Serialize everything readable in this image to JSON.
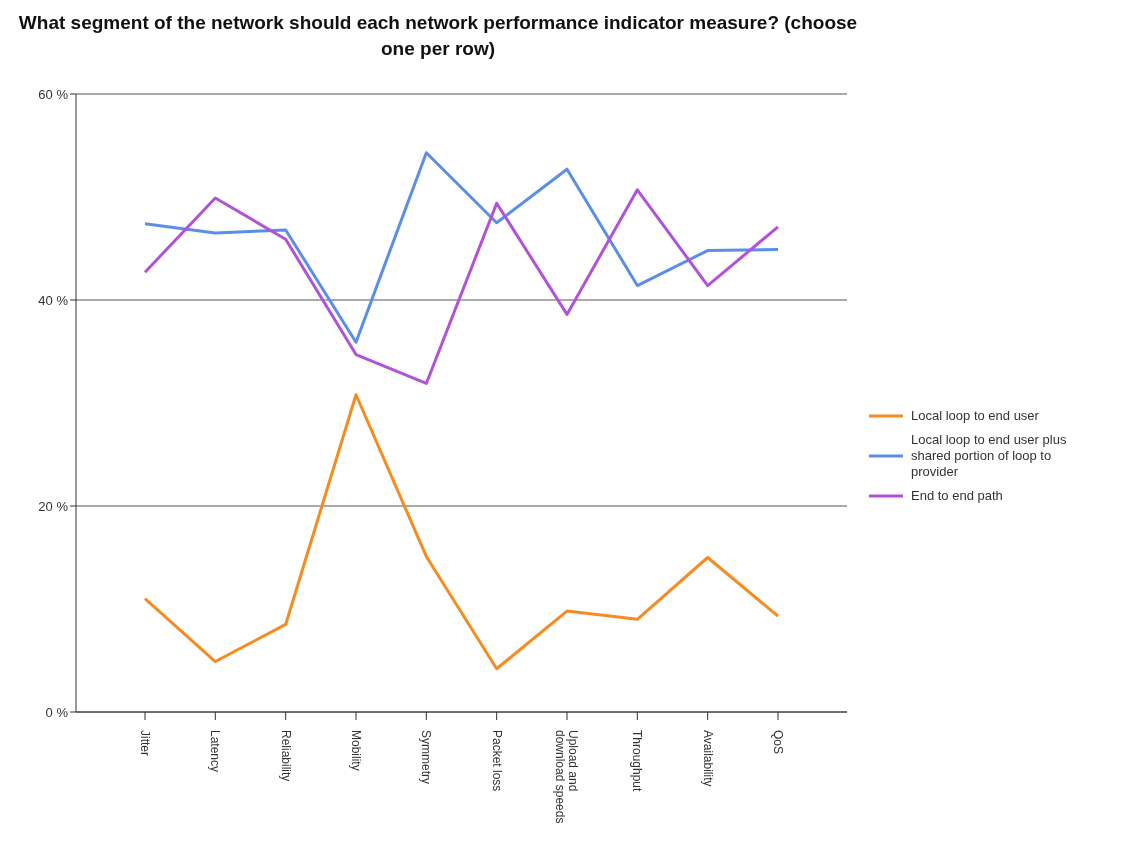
{
  "chart_data": {
    "type": "line",
    "title": "What segment of the network should each network performance indicator measure? (choose one per row)",
    "categories": [
      "Jitter",
      "Latency",
      "Reliability",
      "Mobility",
      "Symmetry",
      "Packet loss",
      "Upload and download speeds",
      "Throughput",
      "Availability",
      "QoS"
    ],
    "series": [
      {
        "name": "Local loop to end user",
        "color": "#f68b1f",
        "values": [
          11.0,
          4.9,
          8.5,
          30.8,
          15.1,
          4.2,
          9.8,
          9.0,
          15.0,
          9.3
        ]
      },
      {
        "name": "Local loop to end user plus shared portion of loop to provider",
        "color": "#5b8ee6",
        "values": [
          47.4,
          46.5,
          46.8,
          35.9,
          54.3,
          47.5,
          52.7,
          41.4,
          44.8,
          44.9
        ]
      },
      {
        "name": "End to end path",
        "color": "#b152d8",
        "values": [
          42.7,
          49.9,
          45.9,
          34.7,
          31.9,
          49.4,
          38.6,
          50.7,
          41.4,
          47.1
        ]
      }
    ],
    "ylim": [
      0,
      60
    ],
    "yticks": [
      {
        "value": 0,
        "label": "0 %"
      },
      {
        "value": 20,
        "label": "20 %"
      },
      {
        "value": 40,
        "label": "40 %"
      },
      {
        "value": 60,
        "label": "60 %"
      }
    ],
    "grid": "y",
    "legend": "right",
    "marker": "none",
    "line_style": "solid"
  }
}
